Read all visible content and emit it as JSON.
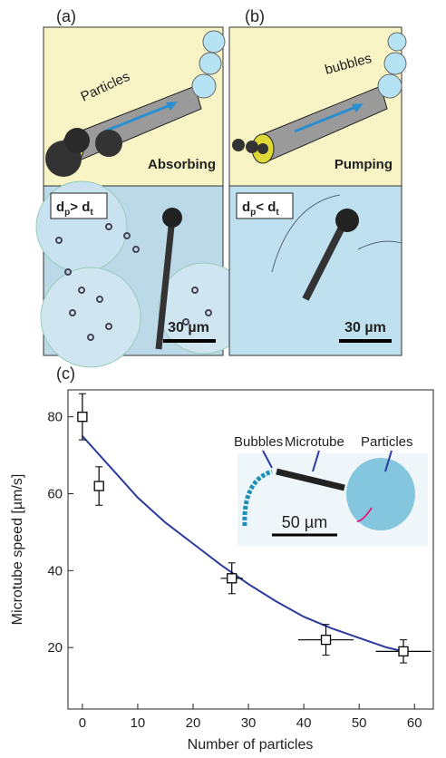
{
  "panels": {
    "a": {
      "label": "(a)",
      "particles": "Particles",
      "mode": "Absorbing",
      "condition": [
        "d",
        "p",
        "> d",
        "t"
      ],
      "scale": "30 µm"
    },
    "b": {
      "label": "(b)",
      "bubbles": "bubbles",
      "mode": "Pumping",
      "condition": [
        "d",
        "p",
        "< d",
        "t"
      ],
      "scale": "30 µm"
    }
  },
  "chart_data": {
    "type": "scatter",
    "label": "(c)",
    "x_label": "Number of particles",
    "y_label": "Microtube speed [µm/s]",
    "xlim": [
      -2.6,
      63.4
    ],
    "ylim": [
      4,
      87
    ],
    "xticks": [
      0,
      10,
      20,
      30,
      40,
      50,
      60
    ],
    "yticks": [
      20,
      40,
      60,
      80
    ],
    "points": {
      "color": "#000000",
      "x": [
        0,
        3,
        27,
        44,
        58
      ],
      "y": [
        80,
        62,
        38,
        22,
        19
      ],
      "xerr": [
        0,
        0,
        2,
        5,
        5
      ],
      "yerr": [
        6,
        5,
        4,
        4,
        3
      ]
    },
    "fit": {
      "color": "#2b3a9c",
      "x": [
        0,
        5,
        10,
        15,
        20,
        25,
        30,
        35,
        40,
        45,
        50,
        55,
        58
      ],
      "y": [
        75,
        67,
        59,
        52.5,
        47,
        41.5,
        36.5,
        32,
        28,
        25,
        22.5,
        20,
        19
      ]
    },
    "inset": {
      "bubbles": "Bubbles",
      "microtube": "Microtube",
      "particles": "Particles",
      "scale": "50 µm"
    }
  }
}
